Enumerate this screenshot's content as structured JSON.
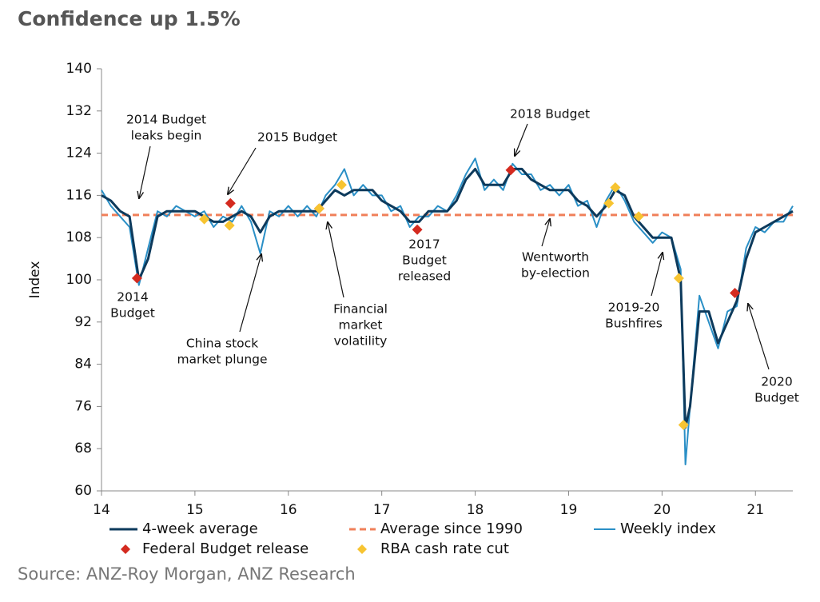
{
  "chart_data": {
    "type": "line",
    "title": "Confidence up 1.5%",
    "y_label": "Index",
    "source": "Source: ANZ-Roy Morgan, ANZ Research",
    "xlim": [
      14,
      21.4
    ],
    "xticks": [
      14,
      15,
      16,
      17,
      18,
      19,
      20,
      21
    ],
    "ylim": [
      60,
      140
    ],
    "yticks": [
      60,
      68,
      76,
      84,
      92,
      100,
      108,
      116,
      124,
      132,
      140
    ],
    "grid": false,
    "x": [
      14.0,
      14.1,
      14.2,
      14.3,
      14.4,
      14.5,
      14.6,
      14.7,
      14.8,
      14.9,
      15.0,
      15.1,
      15.2,
      15.3,
      15.4,
      15.5,
      15.6,
      15.7,
      15.8,
      15.9,
      16.0,
      16.1,
      16.2,
      16.3,
      16.4,
      16.5,
      16.6,
      16.7,
      16.8,
      16.9,
      17.0,
      17.1,
      17.2,
      17.3,
      17.4,
      17.5,
      17.6,
      17.7,
      17.8,
      17.9,
      18.0,
      18.1,
      18.2,
      18.3,
      18.4,
      18.5,
      18.6,
      18.7,
      18.8,
      18.9,
      19.0,
      19.1,
      19.2,
      19.3,
      19.4,
      19.5,
      19.6,
      19.7,
      19.8,
      19.9,
      20.0,
      20.1,
      20.2,
      20.25,
      20.3,
      20.4,
      20.5,
      20.6,
      20.7,
      20.8,
      20.9,
      21.0,
      21.1,
      21.2,
      21.3,
      21.4
    ],
    "series": [
      {
        "name": "4-week average",
        "color": "#0d3a5c",
        "width": 3,
        "values": [
          116,
          115,
          113,
          112,
          100,
          104,
          112,
          113,
          113,
          113,
          113,
          112,
          111,
          111,
          112,
          113,
          112,
          109,
          112,
          113,
          113,
          113,
          113,
          113,
          115,
          117,
          116,
          117,
          117,
          117,
          115,
          114,
          113,
          111,
          111,
          113,
          113,
          113,
          115,
          119,
          121,
          118,
          118,
          118,
          121,
          121,
          119,
          118,
          117,
          117,
          117,
          115,
          114,
          112,
          114,
          117,
          116,
          112,
          110,
          108,
          108,
          108,
          100,
          72,
          76,
          94,
          94,
          88,
          92,
          96,
          104,
          109,
          110,
          111,
          112,
          113
        ]
      },
      {
        "name": "Weekly index",
        "color": "#2a8fc6",
        "width": 2,
        "values": [
          117,
          114,
          112,
          110,
          99,
          106,
          113,
          112,
          114,
          113,
          112,
          113,
          110,
          112,
          111,
          114,
          111,
          105,
          113,
          112,
          114,
          112,
          114,
          112,
          116,
          118,
          121,
          116,
          118,
          116,
          116,
          113,
          114,
          110,
          112,
          112,
          114,
          113,
          116,
          120,
          123,
          117,
          119,
          117,
          122,
          120,
          120,
          117,
          118,
          116,
          118,
          114,
          115,
          110,
          115,
          118,
          115,
          111,
          109,
          107,
          109,
          108,
          102,
          65,
          76,
          97,
          92,
          87,
          94,
          95,
          106,
          110,
          109,
          111,
          111,
          114
        ]
      }
    ],
    "reference_line": {
      "name": "Average since 1990",
      "color": "#f0805a",
      "value": 112.3
    },
    "marker_sets": [
      {
        "name": "Federal Budget release",
        "color": "#d42a1f",
        "x": [
          14.38,
          15.38,
          16.33,
          17.38,
          18.38,
          20.78
        ],
        "values": [
          100.3,
          114.5,
          113.5,
          109.5,
          120.8,
          97.5
        ]
      },
      {
        "name": "RBA cash rate cut",
        "color": "#f7c431",
        "x": [
          15.1,
          15.37,
          16.33,
          16.57,
          19.43,
          19.5,
          19.75,
          20.18,
          20.23
        ],
        "values": [
          111.5,
          110.3,
          113.5,
          118,
          114.5,
          117.5,
          112,
          100.3,
          72.5
        ]
      }
    ],
    "annotations": [
      {
        "lines": [
          "2014 Budget",
          "leaks begin"
        ]
      },
      {
        "lines": [
          "2015 Budget"
        ]
      },
      {
        "lines": [
          "2014",
          "Budget"
        ]
      },
      {
        "lines": [
          "China stock",
          "market plunge"
        ]
      },
      {
        "lines": [
          "Financial",
          "market",
          "volatility"
        ]
      },
      {
        "lines": [
          "2017",
          "Budget",
          "released"
        ]
      },
      {
        "lines": [
          "2018 Budget"
        ]
      },
      {
        "lines": [
          "Wentworth",
          "by-election"
        ]
      },
      {
        "lines": [
          "2019-20",
          "Bushfires"
        ]
      },
      {
        "lines": [
          "2020",
          "Budget"
        ]
      }
    ]
  }
}
